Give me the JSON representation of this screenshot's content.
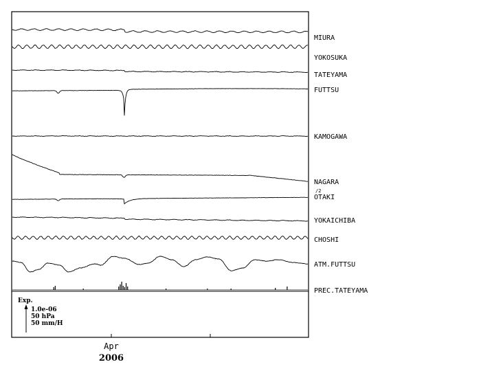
{
  "chart_data": {
    "type": "line",
    "time_axis": {
      "month_label": "Apr",
      "year_label": "2006"
    },
    "series": [
      {
        "name": "MIURA",
        "shape": "wavy",
        "amplitude": 1.2,
        "period": 18,
        "drift": 1.0,
        "step_at": 0.38,
        "step": 2.5
      },
      {
        "name": "YOKOSUKA",
        "shape": "wavy",
        "amplitude": 2.5,
        "period": 12,
        "drift": 0.0,
        "step_at": 0.38,
        "step": 0
      },
      {
        "name": "TATEYAMA",
        "shape": "flat",
        "amplitude": 0.4,
        "period": 20,
        "drift": 1.5,
        "step_at": 0.38,
        "step": 1.5
      },
      {
        "name": "FUTTSU",
        "shape": "futtsu"
      },
      {
        "name": "KAMOGAWA",
        "shape": "flat",
        "amplitude": 0.3,
        "period": 20,
        "drift": 0.0,
        "step_at": 0.38,
        "step": 0
      },
      {
        "name": "NAGARA",
        "scale_note": "/2",
        "shape": "nagara"
      },
      {
        "name": "OTAKI",
        "shape": "otaki"
      },
      {
        "name": "YOKAICHIBA",
        "shape": "flat",
        "amplitude": 0.4,
        "period": 20,
        "drift": 4.0,
        "step_at": 0.38,
        "step": 1.5
      },
      {
        "name": "CHOSHI",
        "shape": "wavy",
        "amplitude": 2.2,
        "period": 11,
        "drift": 0.0,
        "step_at": 0.38,
        "step": 0
      },
      {
        "name": "ATM.FUTTSU",
        "shape": "pressure"
      },
      {
        "name": "PREC.TATEYAMA",
        "shape": "precip",
        "events": [
          [
            0.14,
            4
          ],
          [
            0.145,
            6
          ],
          [
            0.24,
            2
          ],
          [
            0.36,
            5
          ],
          [
            0.365,
            8
          ],
          [
            0.37,
            12
          ],
          [
            0.375,
            6
          ],
          [
            0.38,
            4
          ],
          [
            0.385,
            10
          ],
          [
            0.39,
            5
          ],
          [
            0.52,
            2
          ],
          [
            0.66,
            2
          ],
          [
            0.74,
            2
          ],
          [
            0.89,
            3
          ],
          [
            0.93,
            5
          ]
        ]
      }
    ]
  },
  "scale": {
    "title": "Exp.",
    "strain": "1.0e-06",
    "pressure": "50 hPa",
    "precip": "50 mm/H"
  }
}
